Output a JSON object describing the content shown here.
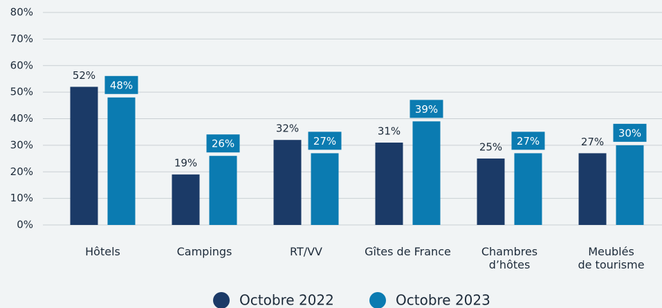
{
  "chart_data": {
    "type": "bar",
    "categories": [
      "Hôtels",
      "Campings",
      "RT/VV",
      "Gîtes de France",
      "Chambres\nd’hôtes",
      "Meublés\nde tourisme"
    ],
    "series": [
      {
        "name": "Octobre 2022",
        "color": "#1b3a67",
        "values": [
          52,
          19,
          32,
          31,
          25,
          27
        ],
        "value_labels": [
          "52%",
          "19%",
          "32%",
          "31%",
          "25%",
          "27%"
        ]
      },
      {
        "name": "Octobre 2023",
        "color": "#0b7bb1",
        "values": [
          48,
          26,
          27,
          39,
          27,
          30
        ],
        "value_labels": [
          "48%",
          "26%",
          "27%",
          "39%",
          "27%",
          "30%"
        ]
      }
    ],
    "ylim": [
      0,
      80
    ],
    "yticks": [
      {
        "value": 0,
        "label": "0%"
      },
      {
        "value": 10,
        "label": "10%"
      },
      {
        "value": 20,
        "label": "20%"
      },
      {
        "value": 30,
        "label": "30%"
      },
      {
        "value": 40,
        "label": "40%"
      },
      {
        "value": 50,
        "label": "50%"
      },
      {
        "value": 60,
        "label": "60%"
      },
      {
        "value": 70,
        "label": "70%"
      },
      {
        "value": 80,
        "label": "80%"
      }
    ],
    "grid": true,
    "legend": "bottom"
  }
}
